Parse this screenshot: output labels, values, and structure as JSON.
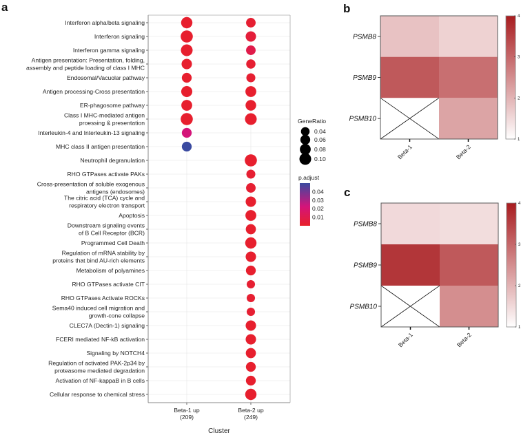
{
  "chart_data": [
    {
      "panel": "a",
      "type": "scatter",
      "subtype": "dotplot",
      "xlabel": "Cluster",
      "categories": [
        {
          "lines": [
            "Beta-1 up",
            "(209)"
          ]
        },
        {
          "lines": [
            "Beta-2 up",
            "(249)"
          ]
        }
      ],
      "terms": [
        [
          "Interferon alpha/beta signaling"
        ],
        [
          "Interferon signaling"
        ],
        [
          "Interferon gamma signaling"
        ],
        [
          "Antigen presentation: Presentation, folding,",
          "assembly and peptide loading of class I MHC"
        ],
        [
          "Endosomal/Vacuolar pathway"
        ],
        [
          "Antigen processing-Cross presentation"
        ],
        [
          "ER-phagosome pathway"
        ],
        [
          "Class I MHC-mediated antigen",
          "proessing & presentation"
        ],
        [
          "Interleukin-4 and Interleukin-13 signaling"
        ],
        [
          "MHC class II antigen presentation"
        ],
        [
          "Neutrophil degranulation"
        ],
        [
          "RHO GTPases activate PAKs"
        ],
        [
          "Cross-presentation of soluble exogenous",
          "antigens (endosomes)"
        ],
        [
          "The citric acid (TCA) cycle and",
          "respiratory electron transport"
        ],
        [
          "Apoptosis"
        ],
        [
          "Downstream signaling events",
          "of B Cell Receptor (BCR)"
        ],
        [
          "Programmed Cell Death"
        ],
        [
          "Regulation of mRNA stability by",
          "proteins that bind AU-rich elements"
        ],
        [
          "Metabolism of polyamines"
        ],
        [
          "RHO GTPases activate CIT"
        ],
        [
          "RHO GTPases Activate ROCKs"
        ],
        [
          "Sema40 induced cell  migration and",
          "growth-cone collapse"
        ],
        [
          "CLEC7A (Dectin-1) signaling"
        ],
        [
          "FCERI mediated NF-kB activation"
        ],
        [
          "Signaling by NOTCH4"
        ],
        [
          "Regulation of activated PAK-2p34 by",
          "proteasome mediated degradation"
        ],
        [
          "Activation of NF-kappaB in B cells"
        ],
        [
          "Cellular response to chemical stress"
        ]
      ],
      "points": [
        {
          "term": 0,
          "cluster": 0,
          "gene_ratio": 0.09,
          "p_adjust": 0.001
        },
        {
          "term": 1,
          "cluster": 0,
          "gene_ratio": 0.11,
          "p_adjust": 0.001
        },
        {
          "term": 2,
          "cluster": 0,
          "gene_ratio": 0.1,
          "p_adjust": 0.001
        },
        {
          "term": 3,
          "cluster": 0,
          "gene_ratio": 0.07,
          "p_adjust": 0.001
        },
        {
          "term": 4,
          "cluster": 0,
          "gene_ratio": 0.06,
          "p_adjust": 0.001
        },
        {
          "term": 5,
          "cluster": 0,
          "gene_ratio": 0.085,
          "p_adjust": 0.001
        },
        {
          "term": 6,
          "cluster": 0,
          "gene_ratio": 0.08,
          "p_adjust": 0.001
        },
        {
          "term": 7,
          "cluster": 0,
          "gene_ratio": 0.11,
          "p_adjust": 0.001
        },
        {
          "term": 8,
          "cluster": 0,
          "gene_ratio": 0.06,
          "p_adjust": 0.02
        },
        {
          "term": 9,
          "cluster": 0,
          "gene_ratio": 0.06,
          "p_adjust": 0.045
        },
        {
          "term": 0,
          "cluster": 1,
          "gene_ratio": 0.055,
          "p_adjust": 0.002
        },
        {
          "term": 1,
          "cluster": 1,
          "gene_ratio": 0.07,
          "p_adjust": 0.004
        },
        {
          "term": 2,
          "cluster": 1,
          "gene_ratio": 0.055,
          "p_adjust": 0.008
        },
        {
          "term": 3,
          "cluster": 1,
          "gene_ratio": 0.05,
          "p_adjust": 0.002
        },
        {
          "term": 4,
          "cluster": 1,
          "gene_ratio": 0.045,
          "p_adjust": 0.002
        },
        {
          "term": 5,
          "cluster": 1,
          "gene_ratio": 0.08,
          "p_adjust": 0.001
        },
        {
          "term": 6,
          "cluster": 1,
          "gene_ratio": 0.075,
          "p_adjust": 0.001
        },
        {
          "term": 7,
          "cluster": 1,
          "gene_ratio": 0.1,
          "p_adjust": 0.001
        },
        {
          "term": 10,
          "cluster": 1,
          "gene_ratio": 0.11,
          "p_adjust": 0.001
        },
        {
          "term": 11,
          "cluster": 1,
          "gene_ratio": 0.045,
          "p_adjust": 0.002
        },
        {
          "term": 12,
          "cluster": 1,
          "gene_ratio": 0.055,
          "p_adjust": 0.002
        },
        {
          "term": 13,
          "cluster": 1,
          "gene_ratio": 0.07,
          "p_adjust": 0.001
        },
        {
          "term": 14,
          "cluster": 1,
          "gene_ratio": 0.08,
          "p_adjust": 0.001
        },
        {
          "term": 15,
          "cluster": 1,
          "gene_ratio": 0.065,
          "p_adjust": 0.001
        },
        {
          "term": 16,
          "cluster": 1,
          "gene_ratio": 0.09,
          "p_adjust": 0.001
        },
        {
          "term": 17,
          "cluster": 1,
          "gene_ratio": 0.07,
          "p_adjust": 0.001
        },
        {
          "term": 18,
          "cluster": 1,
          "gene_ratio": 0.06,
          "p_adjust": 0.001
        },
        {
          "term": 19,
          "cluster": 1,
          "gene_ratio": 0.035,
          "p_adjust": 0.002
        },
        {
          "term": 20,
          "cluster": 1,
          "gene_ratio": 0.035,
          "p_adjust": 0.002
        },
        {
          "term": 21,
          "cluster": 1,
          "gene_ratio": 0.035,
          "p_adjust": 0.002
        },
        {
          "term": 22,
          "cluster": 1,
          "gene_ratio": 0.07,
          "p_adjust": 0.001
        },
        {
          "term": 23,
          "cluster": 1,
          "gene_ratio": 0.07,
          "p_adjust": 0.001
        },
        {
          "term": 24,
          "cluster": 1,
          "gene_ratio": 0.065,
          "p_adjust": 0.001
        },
        {
          "term": 25,
          "cluster": 1,
          "gene_ratio": 0.06,
          "p_adjust": 0.001
        },
        {
          "term": 26,
          "cluster": 1,
          "gene_ratio": 0.06,
          "p_adjust": 0.001
        },
        {
          "term": 27,
          "cluster": 1,
          "gene_ratio": 0.09,
          "p_adjust": 0.001
        }
      ],
      "legend_size": {
        "title": "GeneRatio",
        "values": [
          0.04,
          0.06,
          0.08,
          0.1
        ],
        "labels": [
          "0.04",
          "0.06",
          "0.08",
          "0.10"
        ]
      },
      "legend_color": {
        "title": "p.adjust",
        "range": [
          0,
          0.05
        ],
        "labels": [
          "0.04",
          "0.03",
          "0.02",
          "0.01"
        ],
        "ticks": [
          0.04,
          0.03,
          0.02,
          0.01
        ],
        "colors": [
          "#e8202a",
          "#d4147a",
          "#3a4aa0"
        ]
      },
      "grid": true
    },
    {
      "panel": "b",
      "type": "heatmap",
      "rows": [
        "PSMB8",
        "PSMB9",
        "PSMB10"
      ],
      "columns": [
        "Beta-1",
        "Beta-2"
      ],
      "values": [
        [
          1.8,
          1.6
        ],
        [
          3.2,
          2.9
        ],
        [
          null,
          2.2
        ]
      ],
      "scale": {
        "min": 1,
        "max": 4,
        "ticks": [
          "1",
          "2",
          "3",
          "4"
        ],
        "low_color": "#ffffff",
        "high_color": "#a81c1f"
      }
    },
    {
      "panel": "c",
      "type": "heatmap",
      "rows": [
        "PSMB8",
        "PSMB9",
        "PSMB10"
      ],
      "columns": [
        "Beta-1",
        "Beta-2"
      ],
      "values": [
        [
          1.5,
          1.45
        ],
        [
          3.65,
          3.2
        ],
        [
          null,
          2.5
        ]
      ],
      "scale": {
        "min": 1,
        "max": 4,
        "ticks": [
          "1",
          "2",
          "3",
          "4"
        ],
        "low_color": "#ffffff",
        "high_color": "#a81c1f"
      }
    }
  ]
}
